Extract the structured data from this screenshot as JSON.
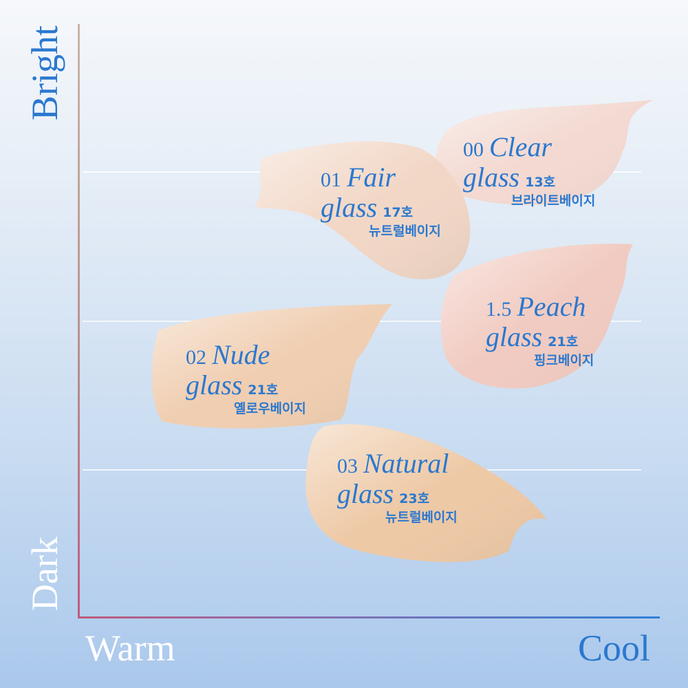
{
  "axes": {
    "top": "Bright",
    "bottom": "Dark",
    "left": "Warm",
    "right": "Cool"
  },
  "colors": {
    "text_blue": "#2a78cf",
    "axis_label_white": "#ffffff"
  },
  "shades": [
    {
      "number": "00",
      "name": "Clear",
      "line2": "glass",
      "code": "13호",
      "tone": "브라이트베이지",
      "color": "#f3d9d1"
    },
    {
      "number": "01",
      "name": "Fair",
      "line2": "glass",
      "code": "17호",
      "tone": "뉴트럴베이지",
      "color": "#f2d7c6"
    },
    {
      "number": "1.5",
      "name": "Peach",
      "line2": "glass",
      "code": "21호",
      "tone": "핑크베이지",
      "color": "#f1cbc1"
    },
    {
      "number": "02",
      "name": "Nude",
      "line2": "glass",
      "code": "21호",
      "tone": "옐로우베이지",
      "color": "#f0ceb1"
    },
    {
      "number": "03",
      "name": "Natural",
      "line2": "glass",
      "code": "23호",
      "tone": "뉴트럴베이지",
      "color": "#eec9a6"
    }
  ]
}
